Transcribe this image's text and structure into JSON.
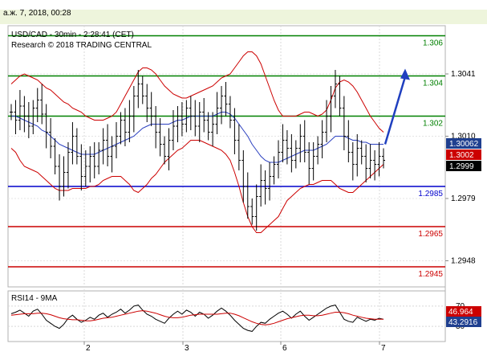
{
  "header": {
    "date_label": "а.ж. 7, 2018, 00:28"
  },
  "chart_data": {
    "type": "candlestick",
    "title": "USD/CAD - 30min - 2:28:41 (CET)",
    "subtitle": "Research © 2018 TRADING CENTRAL",
    "ylim": [
      1.2935,
      1.3065
    ],
    "price_ticks": [
      "1.3041",
      "1.3010",
      "1.2979",
      "1.2948"
    ],
    "price_tick_values": [
      1.3041,
      1.301,
      1.2979,
      1.2948
    ],
    "x_tick_labels": [
      "2",
      "3",
      "6",
      "7"
    ],
    "levels": [
      {
        "label": "1.306",
        "value": 1.306,
        "color": "#008000"
      },
      {
        "label": "1.304",
        "value": 1.304,
        "color": "#008000"
      },
      {
        "label": "1.302",
        "value": 1.302,
        "color": "#008000"
      },
      {
        "label": "1.2985",
        "value": 1.2985,
        "color": "#0000cc"
      },
      {
        "label": "1.2965",
        "value": 1.2965,
        "color": "#cc0000"
      },
      {
        "label": "1.2945",
        "value": 1.2945,
        "color": "#cc0000"
      }
    ],
    "price_badges": [
      {
        "label": "1.30062",
        "value": 1.30062,
        "bg": "#1f3f8f",
        "fg": "#ffffff"
      },
      {
        "label": "1.3002",
        "value": 1.3002,
        "bg": "#cc0000",
        "fg": "#ffffff"
      },
      {
        "label": "1.2999",
        "value": 1.2999,
        "bg": "#000000",
        "fg": "#ffffff"
      }
    ],
    "closes": [
      1.3022,
      1.3018,
      1.3025,
      1.302,
      1.3015,
      1.3024,
      1.3028,
      1.3021,
      1.3012,
      1.3005,
      1.2995,
      1.2985,
      1.2992,
      1.3002,
      1.301,
      1.3,
      1.299,
      1.2995,
      1.3,
      1.2995,
      1.3003,
      1.3008,
      1.3,
      1.3005,
      1.301,
      1.3018,
      1.3012,
      1.302,
      1.303,
      1.3036,
      1.303,
      1.3024,
      1.302,
      1.3012,
      1.3006,
      1.3,
      1.3008,
      1.3015,
      1.302,
      1.3016,
      1.3024,
      1.302,
      1.3015,
      1.3022,
      1.3018,
      1.3012,
      1.3016,
      1.3024,
      1.303,
      1.3026,
      1.3018,
      1.3008,
      1.2998,
      1.2985,
      1.2975,
      1.297,
      1.298,
      1.2988,
      1.2984,
      1.299,
      1.2996,
      1.3002,
      1.3008,
      1.3004,
      1.2998,
      1.3004,
      1.301,
      1.3002,
      1.2994,
      1.3,
      1.3006,
      1.3012,
      1.302,
      1.303,
      1.3036,
      1.3024,
      1.301,
      1.3002,
      1.2996,
      1.3004,
      1.3,
      1.2994,
      1.2998,
      1.2996,
      1.3,
      1.2998
    ],
    "ma_line": [
      1.302,
      1.302,
      1.3019,
      1.3018,
      1.3017,
      1.3016,
      1.3015,
      1.3013,
      1.3012,
      1.301,
      1.3008,
      1.3006,
      1.3005,
      1.3004,
      1.3003,
      1.3002,
      1.3001,
      1.3001,
      1.3001,
      1.3001,
      1.3002,
      1.3003,
      1.3004,
      1.3005,
      1.3006,
      1.3007,
      1.3008,
      1.3009,
      1.301,
      1.3012,
      1.3014,
      1.3015,
      1.3016,
      1.3016,
      1.3016,
      1.3016,
      1.3016,
      1.3017,
      1.3018,
      1.3018,
      1.3019,
      1.302,
      1.302,
      1.302,
      1.302,
      1.302,
      1.302,
      1.3021,
      1.3022,
      1.3022,
      1.3021,
      1.3019,
      1.3016,
      1.3013,
      1.301,
      1.3006,
      1.3003,
      1.3,
      1.2998,
      1.2997,
      1.2997,
      1.2997,
      1.2998,
      1.2999,
      1.3,
      1.3001,
      1.3002,
      1.3003,
      1.3003,
      1.3003,
      1.3004,
      1.3005,
      1.3006,
      1.3008,
      1.301,
      1.301,
      1.301,
      1.3009,
      1.3008,
      1.3008,
      1.3007,
      1.3007,
      1.3006,
      1.3006,
      1.3006,
      1.3006
    ],
    "band_upper": [
      1.3036,
      1.3038,
      1.304,
      1.3041,
      1.304,
      1.3039,
      1.3038,
      1.3036,
      1.3034,
      1.3033,
      1.3031,
      1.3029,
      1.3027,
      1.3026,
      1.3024,
      1.3023,
      1.3022,
      1.302,
      1.3019,
      1.3018,
      1.3018,
      1.3018,
      1.3019,
      1.302,
      1.3022,
      1.3026,
      1.303,
      1.3034,
      1.3038,
      1.3042,
      1.3044,
      1.3044,
      1.3043,
      1.3041,
      1.3038,
      1.3035,
      1.3033,
      1.3031,
      1.303,
      1.3029,
      1.3029,
      1.303,
      1.3031,
      1.3032,
      1.3033,
      1.3034,
      1.3035,
      1.3037,
      1.3039,
      1.304,
      1.3041,
      1.3044,
      1.3047,
      1.305,
      1.3052,
      1.3052,
      1.305,
      1.3046,
      1.304,
      1.3034,
      1.3028,
      1.3023,
      1.302,
      1.302,
      1.302,
      1.302,
      1.3021,
      1.3022,
      1.3022,
      1.3021,
      1.302,
      1.3021,
      1.3023,
      1.3028,
      1.3034,
      1.3037,
      1.3038,
      1.3037,
      1.3035,
      1.3032,
      1.3028,
      1.3024,
      1.302,
      1.3017,
      1.3014,
      1.3012
    ],
    "band_lower": [
      1.3004,
      1.3002,
      1.2998,
      1.2995,
      1.2994,
      1.2993,
      1.2992,
      1.299,
      1.2988,
      1.2986,
      1.2984,
      1.2983,
      1.2983,
      1.2983,
      1.2984,
      1.2984,
      1.2984,
      1.2984,
      1.2985,
      1.2985,
      1.2986,
      1.2988,
      1.2989,
      1.299,
      1.299,
      1.299,
      1.2988,
      1.2986,
      1.2983,
      1.2982,
      1.2984,
      1.2986,
      1.2989,
      1.2991,
      1.2994,
      1.2997,
      1.2999,
      1.3001,
      1.3003,
      1.3004,
      1.3006,
      1.3008,
      1.3008,
      1.3008,
      1.3007,
      1.3006,
      1.3005,
      1.3004,
      1.3003,
      1.3001,
      1.2998,
      1.2992,
      1.2985,
      1.2977,
      1.297,
      1.2965,
      1.2962,
      1.2962,
      1.2964,
      1.2966,
      1.2968,
      1.297,
      1.2974,
      1.2978,
      1.298,
      1.2982,
      1.2984,
      1.2985,
      1.2986,
      1.2986,
      1.2987,
      1.2988,
      1.2988,
      1.2988,
      1.2986,
      1.2984,
      1.2983,
      1.2982,
      1.2982,
      1.2984,
      1.2986,
      1.2988,
      1.299,
      1.2992,
      1.2994,
      1.2996
    ],
    "forecast": {
      "from": 1.3006,
      "to": 1.3042
    },
    "rsi": {
      "label": "RSI14 - 9MA",
      "levels": [
        "70",
        "30"
      ],
      "ylim": [
        0,
        100
      ],
      "badges": [
        {
          "label": "46.964",
          "value": 46.964,
          "bg": "#cc0000",
          "fg": "#ffffff"
        },
        {
          "label": "43.2916",
          "value": 43.2916,
          "bg": "#1f3f8f",
          "fg": "#ffffff"
        }
      ],
      "values": [
        55,
        58,
        62,
        56,
        50,
        60,
        64,
        54,
        42,
        36,
        30,
        26,
        34,
        46,
        52,
        44,
        38,
        42,
        48,
        44,
        52,
        56,
        48,
        54,
        58,
        64,
        56,
        62,
        70,
        72,
        62,
        54,
        50,
        44,
        40,
        36,
        46,
        54,
        60,
        54,
        62,
        58,
        50,
        58,
        54,
        46,
        52,
        60,
        66,
        60,
        52,
        42,
        34,
        26,
        22,
        20,
        30,
        38,
        36,
        44,
        50,
        56,
        60,
        54,
        46,
        54,
        60,
        50,
        42,
        48,
        54,
        60,
        66,
        70,
        72,
        58,
        44,
        40,
        38,
        48,
        44,
        40,
        44,
        42,
        46,
        44
      ],
      "ma": [
        52,
        53,
        54,
        55,
        55,
        55,
        56,
        56,
        55,
        53,
        50,
        47,
        45,
        44,
        43,
        43,
        42,
        41,
        41,
        42,
        44,
        46,
        47,
        48,
        50,
        52,
        54,
        56,
        58,
        60,
        61,
        60,
        58,
        56,
        53,
        50,
        48,
        47,
        47,
        48,
        50,
        52,
        53,
        54,
        54,
        54,
        54,
        54,
        55,
        56,
        56,
        54,
        51,
        47,
        43,
        39,
        36,
        34,
        33,
        34,
        36,
        39,
        42,
        45,
        47,
        49,
        51,
        52,
        52,
        51,
        51,
        52,
        54,
        56,
        58,
        58,
        57,
        55,
        52,
        50,
        48,
        46,
        45,
        44,
        44,
        44
      ]
    }
  }
}
